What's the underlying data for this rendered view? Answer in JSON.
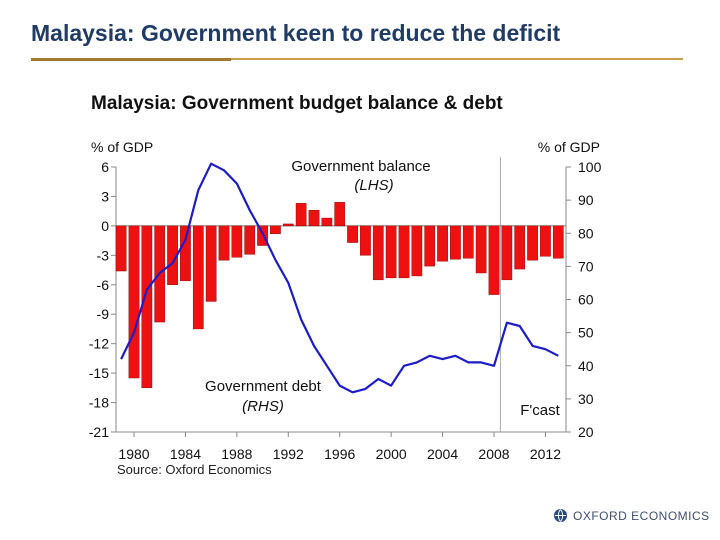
{
  "slide": {
    "title": "Malaysia: Government keen to reduce the deficit",
    "brand": "OXFORD ECONOMICS"
  },
  "colors": {
    "title": "#1f3b66",
    "rule": "#c8a04a",
    "bars": "#ee1111",
    "line": "#1c1cc8"
  },
  "chart_data": {
    "type": "bar+line",
    "title": "Malaysia: Government budget balance & debt",
    "source": "Source: Oxford Economics",
    "left_axis": {
      "label": "% of GDP",
      "ylim": [
        -21,
        6
      ],
      "ticks": [
        6,
        3,
        0,
        -3,
        -6,
        -9,
        -12,
        -15,
        -18,
        -21
      ],
      "tick_labels": [
        "6",
        "3",
        "0",
        "-3",
        "-6",
        "-9",
        "-12",
        "-15",
        "-18",
        "-21"
      ]
    },
    "right_axis": {
      "label": "% of GDP",
      "ylim": [
        20,
        100
      ],
      "ticks": [
        100,
        90,
        80,
        70,
        60,
        50,
        40,
        30,
        20
      ],
      "tick_labels": [
        "100",
        "90",
        "80",
        "70",
        "60",
        "50",
        "40",
        "30",
        "20"
      ]
    },
    "x_tick_labels": [
      "1980",
      "1984",
      "1988",
      "1992",
      "1996",
      "2000",
      "2004",
      "2008",
      "2012"
    ],
    "x_ticks": [
      1980,
      1984,
      1988,
      1992,
      1996,
      2000,
      2004,
      2008,
      2012
    ],
    "forecast_from": 2009,
    "forecast_label": "F'cast",
    "series": [
      {
        "name": "Government balance",
        "axis_note": "(LHS)",
        "kind": "bar",
        "years": [
          1979,
          1980,
          1981,
          1982,
          1983,
          1984,
          1985,
          1986,
          1987,
          1988,
          1989,
          1990,
          1991,
          1992,
          1993,
          1994,
          1995,
          1996,
          1997,
          1998,
          1999,
          2000,
          2001,
          2002,
          2003,
          2004,
          2005,
          2006,
          2007,
          2008,
          2009,
          2010,
          2011,
          2012,
          2013
        ],
        "values": [
          -4.6,
          -15.5,
          -16.5,
          -9.8,
          -6.0,
          -5.6,
          -10.5,
          -7.7,
          -3.5,
          -3.2,
          -2.9,
          -2.0,
          -0.8,
          0.2,
          2.3,
          1.6,
          0.8,
          2.4,
          -1.7,
          -3.0,
          -5.5,
          -5.3,
          -5.3,
          -5.1,
          -4.1,
          -3.6,
          -3.4,
          -3.3,
          -4.8,
          -7.0,
          -5.5,
          -4.4,
          -3.5,
          -3.1,
          -3.3
        ]
      },
      {
        "name": "Government debt",
        "axis_note": "(RHS)",
        "kind": "line",
        "years": [
          1979,
          1980,
          1981,
          1982,
          1983,
          1984,
          1985,
          1986,
          1987,
          1988,
          1989,
          1990,
          1991,
          1992,
          1993,
          1994,
          1995,
          1996,
          1997,
          1998,
          1999,
          2000,
          2001,
          2002,
          2003,
          2004,
          2005,
          2006,
          2007,
          2008,
          2009,
          2010,
          2011,
          2012,
          2013
        ],
        "values": [
          42,
          50,
          63,
          68,
          71,
          78,
          93,
          101,
          99,
          95,
          87,
          80,
          72,
          65,
          54,
          46,
          40,
          34,
          32,
          33,
          36,
          34,
          40,
          41,
          43,
          42,
          43,
          41,
          41,
          40,
          53,
          52,
          46,
          45,
          43
        ]
      }
    ]
  }
}
